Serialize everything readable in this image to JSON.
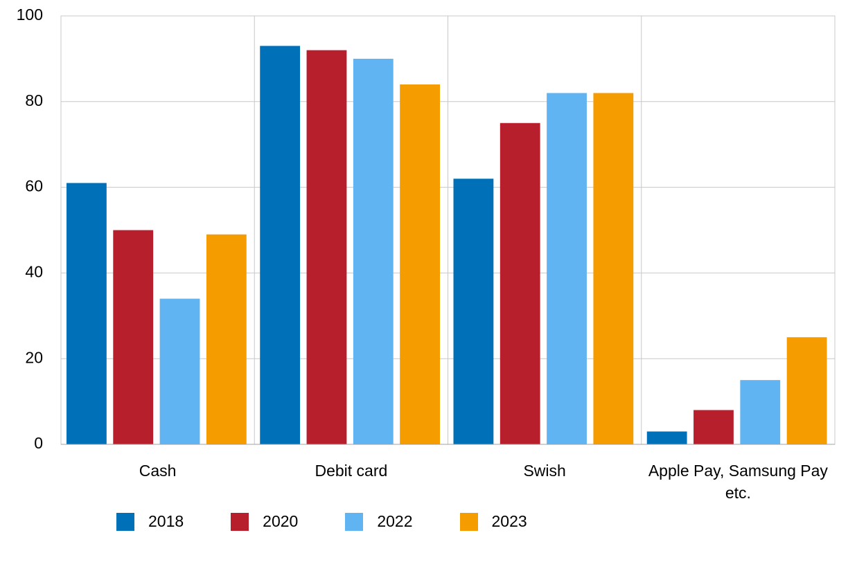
{
  "chart_data": {
    "type": "bar",
    "categories": [
      "Cash",
      "Debit card",
      "Swish",
      "Apple Pay, Samsung Pay etc."
    ],
    "series": [
      {
        "name": "2018",
        "color": "#0070b8",
        "values": [
          61,
          93,
          62,
          3
        ]
      },
      {
        "name": "2020",
        "color": "#b81f2d",
        "values": [
          50,
          92,
          75,
          8
        ]
      },
      {
        "name": "2022",
        "color": "#60b4f2",
        "values": [
          34,
          90,
          82,
          15
        ]
      },
      {
        "name": "2023",
        "color": "#f59c00",
        "values": [
          49,
          84,
          82,
          25
        ]
      }
    ],
    "ylim": [
      0,
      100
    ],
    "yticks": [
      0,
      20,
      40,
      60,
      80,
      100
    ],
    "grid": true,
    "legend": "bottom"
  }
}
